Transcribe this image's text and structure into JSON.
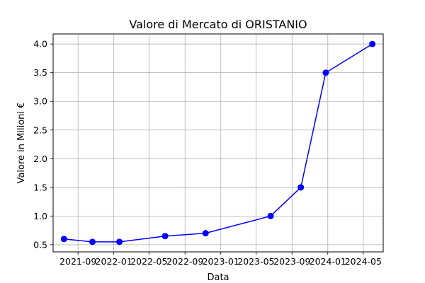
{
  "chart_data": {
    "type": "line",
    "title": "Valore di Mercato di ORISTANIO",
    "xlabel": "Data",
    "ylabel": "Valore in Milioni €",
    "series": [
      {
        "x": [
          "2021-07-15",
          "2021-10-20",
          "2022-01-20",
          "2022-06-25",
          "2022-11-10",
          "2023-06-20",
          "2023-10-01",
          "2023-12-25",
          "2024-06-01"
        ],
        "values": [
          0.6,
          0.55,
          0.55,
          0.65,
          0.7,
          1.0,
          1.5,
          3.5,
          4.0
        ],
        "color": "#0000ff",
        "marker": "circle"
      }
    ],
    "x_tick_labels": [
      "2021-09",
      "2022-01",
      "2022-05",
      "2022-09",
      "2023-01",
      "2023-05",
      "2023-09",
      "2024-01",
      "2024-05"
    ],
    "x_tick_dates": [
      "2021-09-01",
      "2022-01-01",
      "2022-05-01",
      "2022-09-01",
      "2023-01-01",
      "2023-05-01",
      "2023-09-01",
      "2024-01-01",
      "2024-05-01"
    ],
    "y_ticks": [
      0.5,
      1.0,
      1.5,
      2.0,
      2.5,
      3.0,
      3.5,
      4.0
    ],
    "y_tick_labels": [
      "0.5",
      "1.0",
      "1.5",
      "2.0",
      "2.5",
      "3.0",
      "3.5",
      "4.0"
    ],
    "ylim": [
      0.375,
      4.175
    ],
    "xlim": [
      "2021-06-08",
      "2024-07-08"
    ],
    "grid": true
  }
}
